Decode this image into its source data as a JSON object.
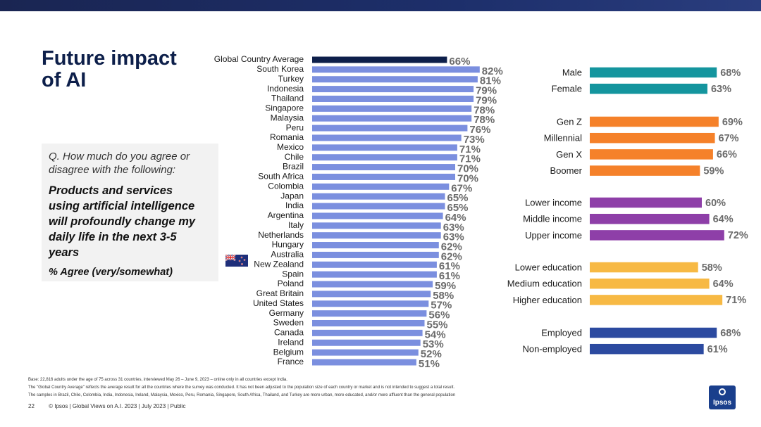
{
  "slide": {
    "title_line1": "Future impact",
    "title_line2": "of AI",
    "question_line1": "Q. How much do you agree or",
    "question_line2": "disagree with the following:",
    "statement_lines": [
      "Products and services",
      "using artificial intelligence",
      "will profoundly change my",
      "daily life in the next 3-5",
      "years"
    ],
    "agree_label": "% Agree (very/somewhat)",
    "footnotes": [
      "Base: 22,816 adults under the age of 75 across 31 countries, interviewed May 26 – June 9, 2023 – online only in all countries except India.",
      "The \"Global Country Average\" reflects the average result for all the countries where the survey was conducted. It has not been adjusted to the population size of each country or market and is not intended to suggest a total result.",
      "The samples in Brazil, Chile, Colombia, India, Indonesia, Ireland, Malaysia, Mexico, Peru, Romania, Singapore, South Africa, Thailand, and Turkey are more urban, more educated, and/or more affluent than the general population"
    ],
    "page_number": "22",
    "footer_text": "© Ipsos | Global Views on A.I. 2023 | July 2023 | Public",
    "logo_text": "Ipsos"
  },
  "colors": {
    "navy": "#0d1f4a",
    "country_bar": "#7b8fdf",
    "teal": "#14959e",
    "orange": "#f5812a",
    "purple": "#8e3fa8",
    "yellow": "#f7b944",
    "blue": "#2c4aa0",
    "value_text": "#6b6b6b"
  },
  "chart_data": [
    {
      "type": "bar",
      "orientation": "horizontal",
      "categories": [
        "Global Country Average",
        "South Korea",
        "Turkey",
        "Indonesia",
        "Thailand",
        "Singapore",
        "Malaysia",
        "Peru",
        "Romania",
        "Mexico",
        "Chile",
        "Brazil",
        "South Africa",
        "Colombia",
        "Japan",
        "India",
        "Argentina",
        "Italy",
        "Netherlands",
        "Hungary",
        "Australia",
        "New Zealand",
        "Spain",
        "Poland",
        "Great Britain",
        "United States",
        "Germany",
        "Sweden",
        "Canada",
        "Ireland",
        "Belgium",
        "France"
      ],
      "values": [
        66,
        82,
        81,
        79,
        79,
        78,
        78,
        76,
        73,
        71,
        71,
        70,
        70,
        67,
        65,
        65,
        64,
        63,
        63,
        62,
        62,
        61,
        61,
        59,
        58,
        57,
        56,
        55,
        54,
        53,
        52,
        51
      ],
      "value_suffix": "%",
      "highlight": "Global Country Average"
    },
    {
      "type": "bar",
      "orientation": "horizontal",
      "groups": [
        {
          "color": "teal",
          "categories": [
            "Male",
            "Female"
          ],
          "values": [
            68,
            63
          ]
        },
        {
          "color": "orange",
          "categories": [
            "Gen Z",
            "Millennial",
            "Gen X",
            "Boomer"
          ],
          "values": [
            69,
            67,
            66,
            59
          ]
        },
        {
          "color": "purple",
          "categories": [
            "Lower income",
            "Middle income",
            "Upper income"
          ],
          "values": [
            60,
            64,
            72
          ]
        },
        {
          "color": "yellow",
          "categories": [
            "Lower education",
            "Medium education",
            "Higher education"
          ],
          "values": [
            58,
            64,
            71
          ]
        },
        {
          "color": "blue",
          "categories": [
            "Employed",
            "Non-employed"
          ],
          "values": [
            68,
            61
          ]
        }
      ],
      "value_suffix": "%"
    }
  ]
}
